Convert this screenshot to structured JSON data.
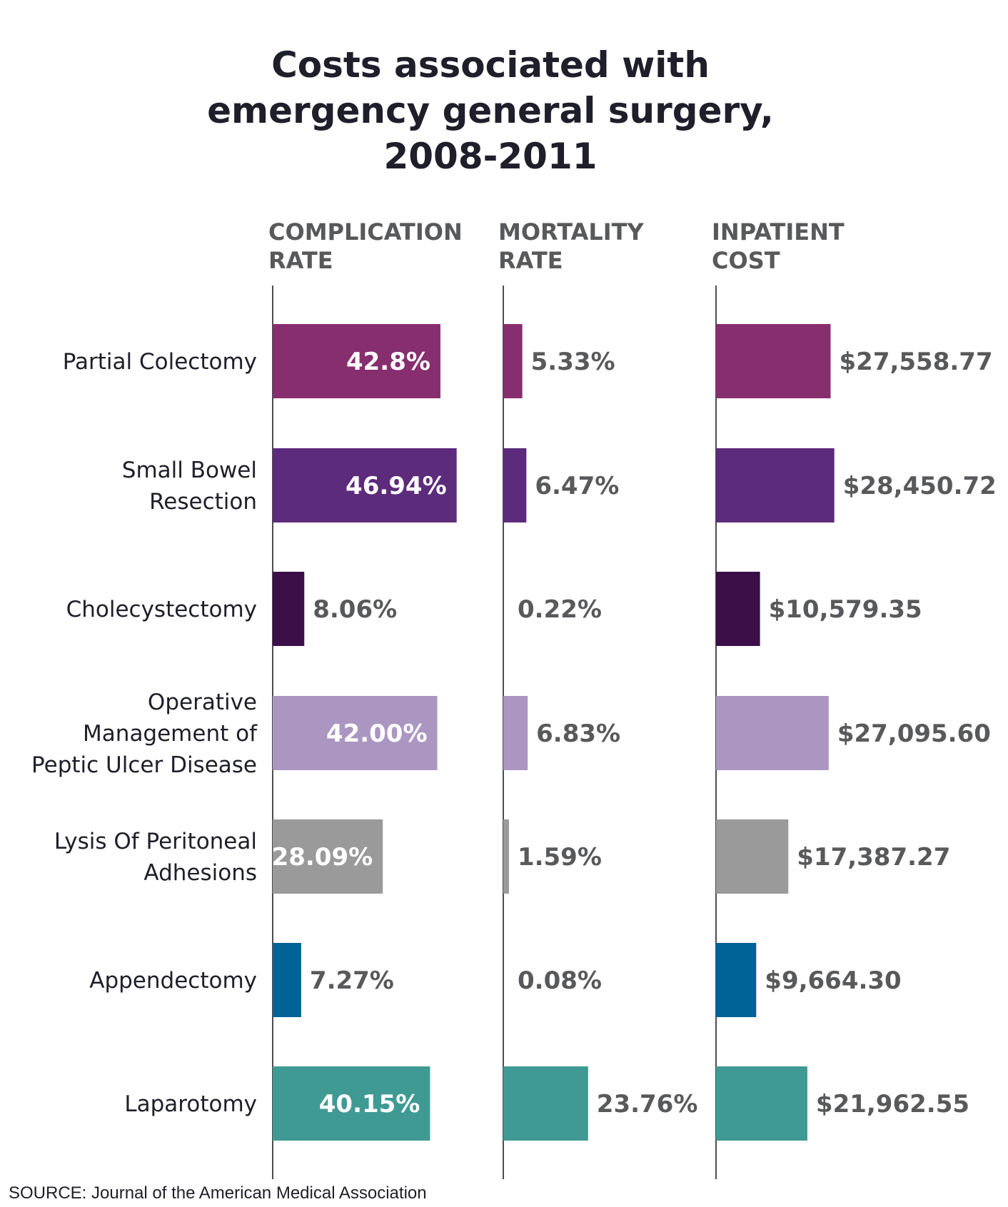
{
  "chart_data": {
    "type": "bar",
    "title": [
      "Costs associated with",
      "emergency general surgery,",
      "2008-2011"
    ],
    "categories": [
      [
        "Partial Colectomy"
      ],
      [
        "Small Bowel",
        "Resection"
      ],
      [
        "Cholecystectomy"
      ],
      [
        "Operative",
        "Management of",
        "Peptic Ulcer Disease"
      ],
      [
        "Lysis Of Peritoneal",
        "Adhesions"
      ],
      [
        "Appendectomy"
      ],
      [
        "Laparotomy"
      ]
    ],
    "colors": [
      "#862e6e",
      "#5c2b7b",
      "#3c0f48",
      "#ab96c2",
      "#9a9a9a",
      "#006397",
      "#3f9a94"
    ],
    "series": [
      {
        "name": [
          "COMPLICATION",
          "RATE"
        ],
        "values": [
          42.8,
          46.94,
          8.06,
          42.0,
          28.09,
          7.27,
          40.15
        ],
        "labels": [
          "42.8%",
          "46.94%",
          "8.06%",
          "42.00%",
          "28.09%",
          "7.27%",
          "40.15%"
        ],
        "max": 47
      },
      {
        "name": [
          "MORTALITY",
          "RATE"
        ],
        "values": [
          5.33,
          6.47,
          0.22,
          6.83,
          1.59,
          0.08,
          23.76
        ],
        "labels": [
          "5.33%",
          "6.47%",
          "0.22%",
          "6.83%",
          "1.59%",
          "0.08%",
          "23.76%"
        ],
        "max": 24
      },
      {
        "name": [
          "INPATIENT",
          "COST"
        ],
        "values": [
          27558.77,
          28450.72,
          10579.35,
          27095.6,
          17387.27,
          9664.3,
          21962.55
        ],
        "labels": [
          "$27,558.77",
          "$28,450.72",
          "$10,579.35",
          "$27,095.60",
          "$17,387.27",
          "$9,664.30",
          "$21,962.55"
        ],
        "max": 28500
      }
    ],
    "source": "SOURCE: Journal of the American Medical Association"
  }
}
